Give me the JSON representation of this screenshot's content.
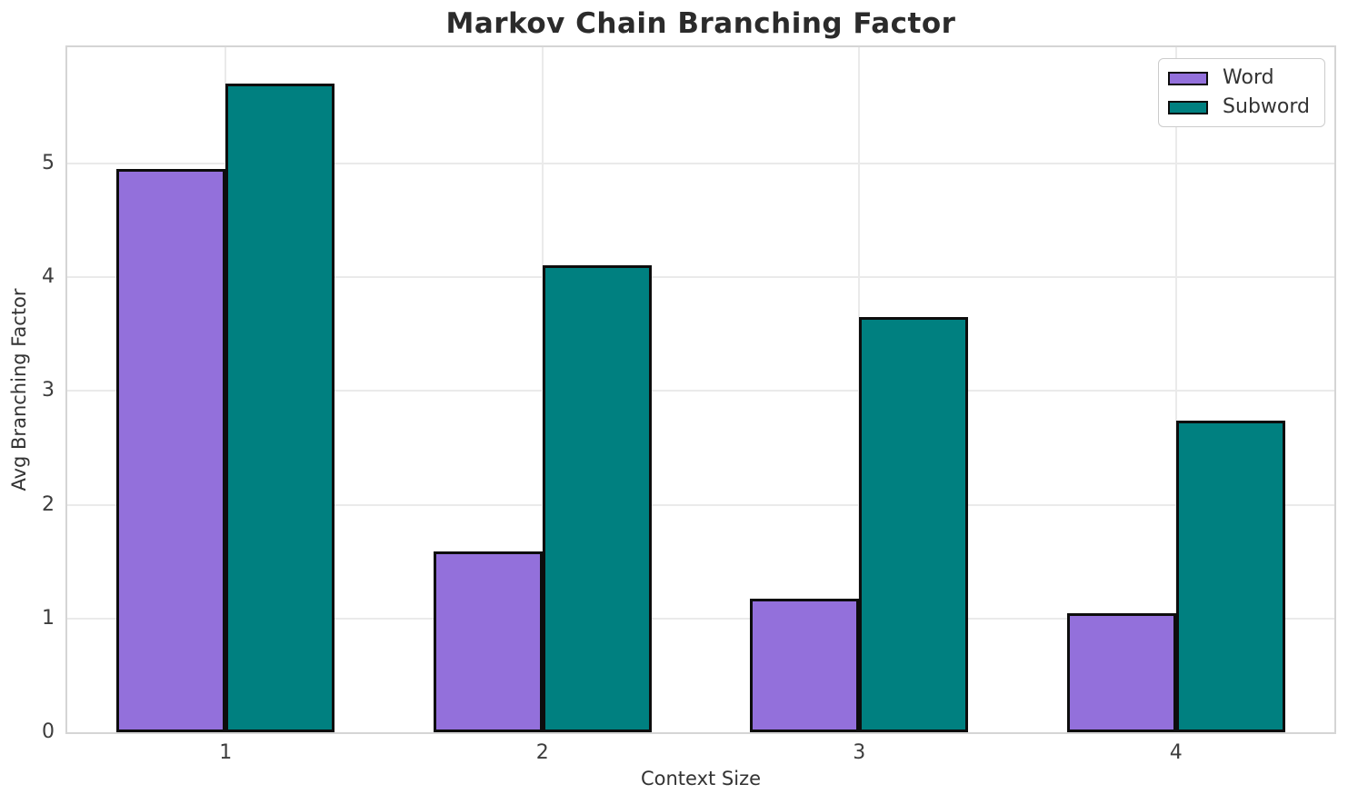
{
  "chart_data": {
    "type": "bar",
    "title": "Markov Chain Branching Factor",
    "xlabel": "Context Size",
    "ylabel": "Avg Branching Factor",
    "categories": [
      "1",
      "2",
      "3",
      "4"
    ],
    "series": [
      {
        "name": "Word",
        "color": "#9370DB",
        "values": [
          4.95,
          1.59,
          1.17,
          1.05
        ]
      },
      {
        "name": "Subword",
        "color": "#008080",
        "values": [
          5.7,
          4.1,
          3.65,
          2.74
        ]
      }
    ],
    "ylim": [
      0,
      6.02
    ],
    "yticks": [
      0,
      1,
      2,
      3,
      4,
      5
    ],
    "grid": true,
    "legend_position": "upper right",
    "bar_edge_color": "#0d0d0d",
    "grid_color": "#eaeaea",
    "spine_color": "#d5d5d5"
  }
}
